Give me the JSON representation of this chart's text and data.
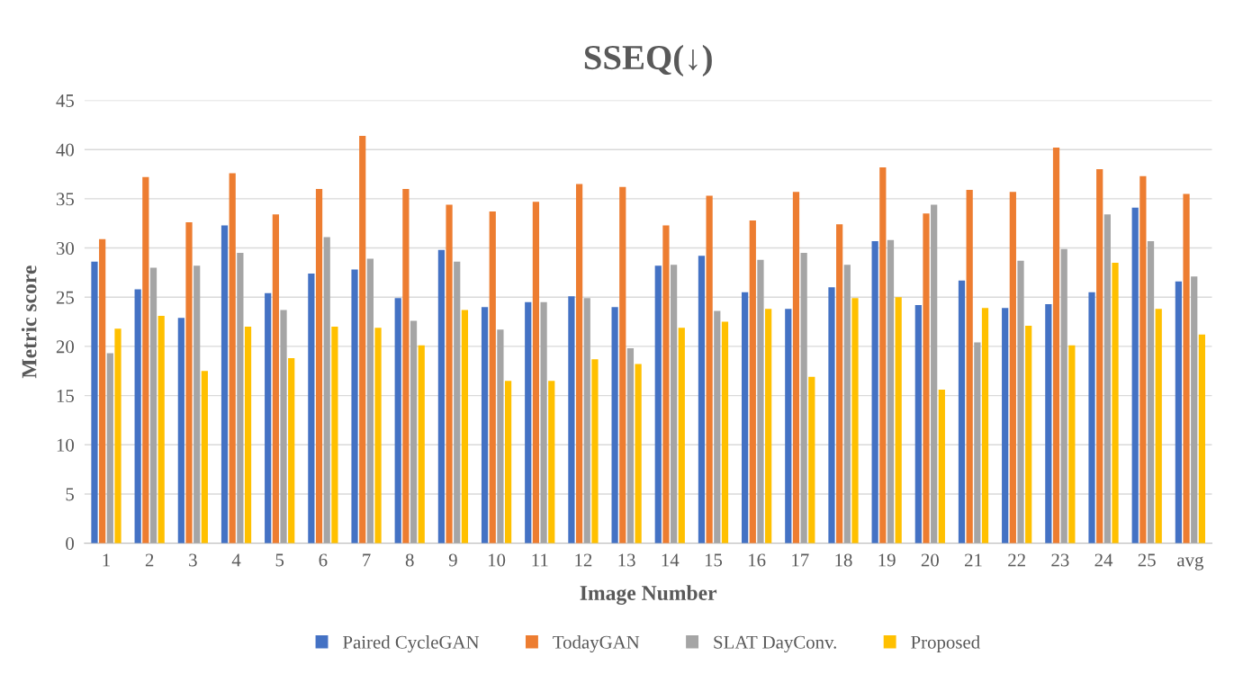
{
  "chart_data": {
    "type": "bar",
    "title": "SSEQ(↓)",
    "xlabel": "Image Number",
    "ylabel": "Metric score",
    "categories": [
      "1",
      "2",
      "3",
      "4",
      "5",
      "6",
      "7",
      "8",
      "9",
      "10",
      "11",
      "12",
      "13",
      "14",
      "15",
      "16",
      "17",
      "18",
      "19",
      "20",
      "21",
      "22",
      "23",
      "24",
      "25",
      "avg"
    ],
    "series": [
      {
        "name": "Paired CycleGAN",
        "color": "#4472c4",
        "values": [
          28.6,
          25.8,
          22.9,
          32.3,
          25.4,
          27.4,
          27.8,
          24.9,
          29.8,
          24.0,
          24.5,
          25.1,
          24.0,
          28.2,
          29.2,
          25.5,
          23.8,
          26.0,
          30.7,
          24.2,
          26.7,
          23.9,
          24.3,
          25.5,
          34.1,
          26.6
        ]
      },
      {
        "name": "TodayGAN",
        "color": "#ed7d31",
        "values": [
          30.9,
          37.2,
          32.6,
          37.6,
          33.4,
          36.0,
          41.4,
          36.0,
          34.4,
          33.7,
          34.7,
          36.5,
          36.2,
          32.3,
          35.3,
          32.8,
          35.7,
          32.4,
          38.2,
          33.5,
          35.9,
          35.7,
          40.2,
          38.0,
          37.3,
          35.5
        ]
      },
      {
        "name": "SLAT DayConv.",
        "color": "#a5a5a5",
        "values": [
          19.3,
          28.0,
          28.2,
          29.5,
          23.7,
          31.1,
          28.9,
          22.6,
          28.6,
          21.7,
          24.5,
          24.9,
          19.8,
          28.3,
          23.6,
          28.8,
          29.5,
          28.3,
          30.8,
          34.4,
          20.4,
          28.7,
          29.9,
          33.4,
          30.7,
          27.1
        ]
      },
      {
        "name": "Proposed",
        "color": "#ffc000",
        "values": [
          21.8,
          23.1,
          17.5,
          22.0,
          18.8,
          22.0,
          21.9,
          20.1,
          23.7,
          16.5,
          16.5,
          18.7,
          18.2,
          21.9,
          22.5,
          23.8,
          16.9,
          24.9,
          25.0,
          15.6,
          23.9,
          22.1,
          20.1,
          28.5,
          23.8,
          21.2
        ]
      }
    ],
    "ylim": [
      0,
      45
    ],
    "yticks": [
      0,
      5,
      10,
      15,
      20,
      25,
      30,
      35,
      40,
      45
    ],
    "grid": "y",
    "legend": "bottom"
  }
}
